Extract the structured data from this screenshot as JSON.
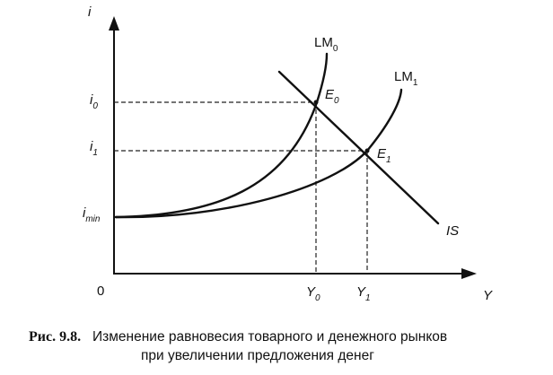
{
  "diagram": {
    "axis_y_label": "i",
    "axis_x_label": "Y",
    "origin_label": "0",
    "lm0": {
      "main": "LM",
      "sub": "0"
    },
    "lm1": {
      "main": "LM",
      "sub": "1"
    },
    "is_label": "IS",
    "e0": {
      "main": "E",
      "sub": "0"
    },
    "e1": {
      "main": "E",
      "sub": "1"
    },
    "i0": {
      "main": "i",
      "sub": "0"
    },
    "i1": {
      "main": "i",
      "sub": "1"
    },
    "imin": {
      "main": "i",
      "sub": "min"
    },
    "y0": {
      "main": "Y",
      "sub": "0"
    },
    "y1": {
      "main": "Y",
      "sub": "1"
    }
  },
  "caption": {
    "figure_number": "Рис. 9.8.",
    "line1": "Изменение равновесия товарного и денежного рынков",
    "line2": "при увеличении предложения денег"
  }
}
